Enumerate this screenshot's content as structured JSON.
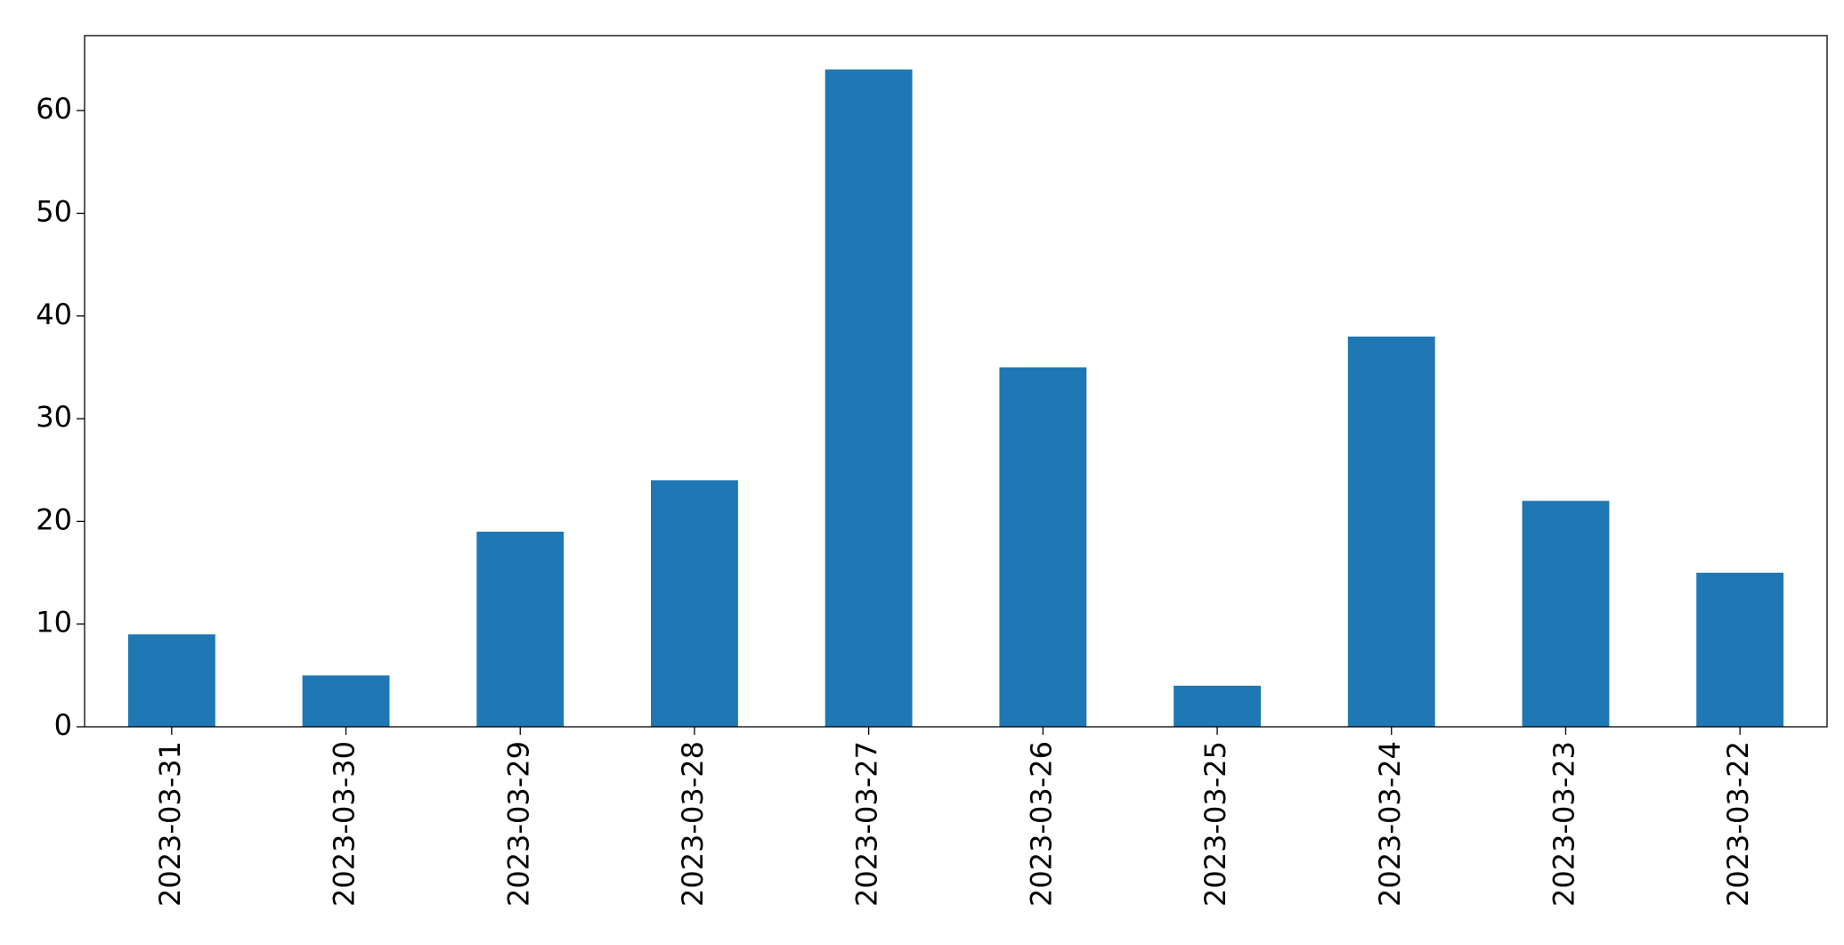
{
  "chart_data": {
    "type": "bar",
    "categories": [
      "2023-03-31",
      "2023-03-30",
      "2023-03-29",
      "2023-03-28",
      "2023-03-27",
      "2023-03-26",
      "2023-03-25",
      "2023-03-24",
      "2023-03-23",
      "2023-03-22"
    ],
    "values": [
      9,
      5,
      19,
      24,
      64,
      35,
      4,
      38,
      22,
      15
    ],
    "color": "#1f77b4",
    "ylim": [
      0,
      67.3
    ],
    "yticks": [
      0,
      10,
      20,
      30,
      40,
      50,
      60
    ],
    "grid": false
  }
}
